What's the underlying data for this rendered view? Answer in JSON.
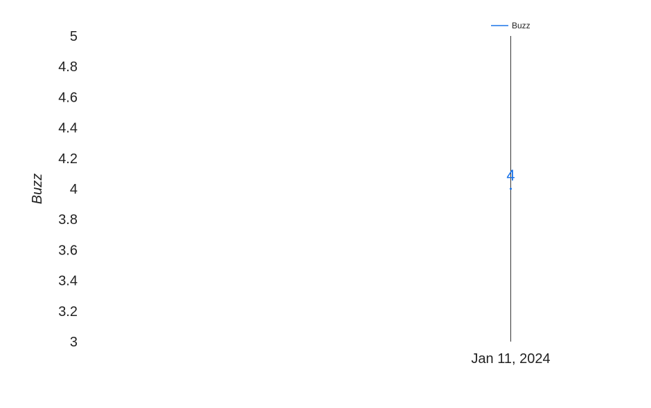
{
  "chart_data": {
    "type": "line",
    "title": "",
    "xlabel": "",
    "ylabel": "Buzz",
    "x": [
      "Jan 11, 2024"
    ],
    "series": [
      {
        "name": "Buzz",
        "color": "#1a73e8",
        "values": [
          4
        ],
        "data_labels": [
          "4"
        ]
      }
    ],
    "ylim": [
      3,
      5
    ],
    "yticks": [
      "5",
      "4.8",
      "4.6",
      "4.4",
      "4.2",
      "4",
      "3.8",
      "3.6",
      "3.4",
      "3.2",
      "3"
    ],
    "ytick_values": [
      5,
      4.8,
      4.6,
      4.4,
      4.2,
      4,
      3.8,
      3.6,
      3.4,
      3.2,
      3
    ],
    "grid": false,
    "legend_position": "top-right",
    "axis_line_color": "#333333"
  }
}
